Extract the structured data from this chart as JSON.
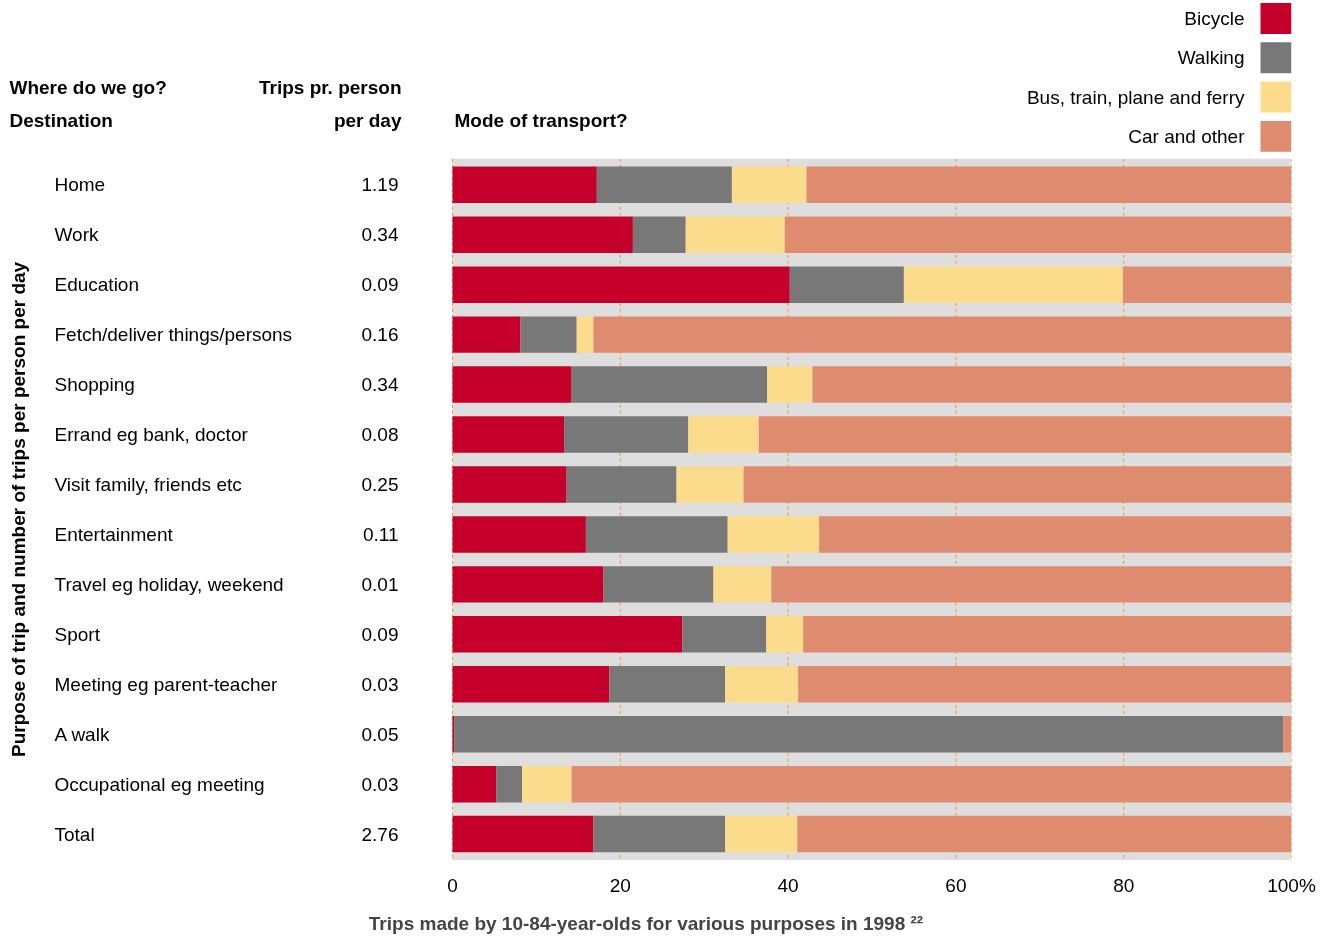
{
  "chart_data": {
    "type": "bar",
    "orientation": "horizontal",
    "stacked": true,
    "xlabel": "Trips made by 10-84-year-olds for various purposes in 1998 ²²",
    "ylabel": "Purpose of trip and number of trips per person per day",
    "categories": [
      "Home",
      "Work",
      "Education",
      "Fetch/deliver things/persons",
      "Shopping",
      "Errand eg bank, doctor",
      "Visit family, friends etc",
      "Entertainment",
      "Travel eg holiday, weekend",
      "Sport",
      "Meeting eg parent-teacher",
      "A walk",
      "Occupational eg meeting",
      "Total"
    ],
    "series": [
      {
        "name": "Bicycle",
        "color": "#c4002b",
        "values": [
          17.2,
          21.5,
          40.2,
          8.1,
          14.2,
          13.3,
          13.6,
          15.9,
          18.0,
          27.4,
          18.7,
          0.2,
          5.2,
          16.8
        ]
      },
      {
        "name": "Walking",
        "color": "#787878",
        "values": [
          16.1,
          6.3,
          13.6,
          6.7,
          23.3,
          14.8,
          13.1,
          16.9,
          13.1,
          10.0,
          13.8,
          98.8,
          3.1,
          15.7
        ]
      },
      {
        "name": "Bus, train, plane and ferry",
        "color": "#fbdb8c",
        "values": [
          8.9,
          11.8,
          26.1,
          2.0,
          5.4,
          8.4,
          8.0,
          10.9,
          6.9,
          4.4,
          8.7,
          0,
          5.9,
          8.6
        ]
      },
      {
        "name": "Car and other",
        "color": "#df8b70",
        "values": [
          57.8,
          60.4,
          20.1,
          83.2,
          57.1,
          63.5,
          65.3,
          56.3,
          62.0,
          58.2,
          58.8,
          1.0,
          85.8,
          58.9
        ]
      }
    ],
    "xlim": [
      0,
      100
    ],
    "xticks": [
      0,
      20,
      40,
      60,
      80,
      {
        "value": 100,
        "label": "100%"
      }
    ],
    "grid": "x",
    "legend": "top right",
    "annotations": [
      "Where do we go?",
      "Destination",
      "Trips pr. person",
      "per day",
      "Mode of transport?",
      "1.19",
      "0.34",
      "0.09",
      "0.16",
      "0.34",
      "0.08",
      "0.25",
      "0.11",
      "0.01",
      "0.09",
      "0.03",
      "0.05",
      "0.03",
      "2.76"
    ]
  }
}
